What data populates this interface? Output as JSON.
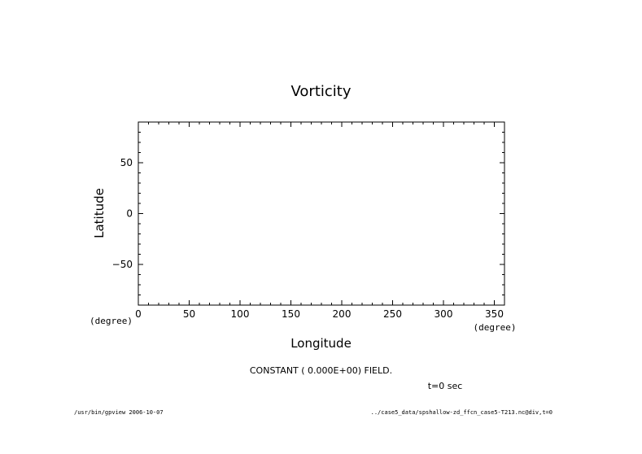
{
  "chart_data": {
    "type": "heatmap",
    "title": "Vorticity",
    "xlabel": "Longitude",
    "ylabel": "Latitude",
    "x_unit": "(degree)",
    "y_unit": "(degree)",
    "xlim": [
      0,
      360
    ],
    "ylim": [
      -90,
      90
    ],
    "x_ticks": [
      0,
      50,
      100,
      150,
      200,
      250,
      300,
      350
    ],
    "y_ticks": [
      -50,
      0,
      50
    ],
    "field_note": "CONSTANT ( 0.000E+00) FIELD.",
    "time_label": "t=0 sec",
    "grid": false,
    "legend": "none"
  },
  "footer": {
    "left": "/usr/bin/gpview  2006-10-07",
    "right": "../case5_data/spshallow-zd_ffcn_case5-T213.nc@div,t=0"
  },
  "colors": {
    "background": "#ffffff",
    "foreground": "#000000"
  }
}
